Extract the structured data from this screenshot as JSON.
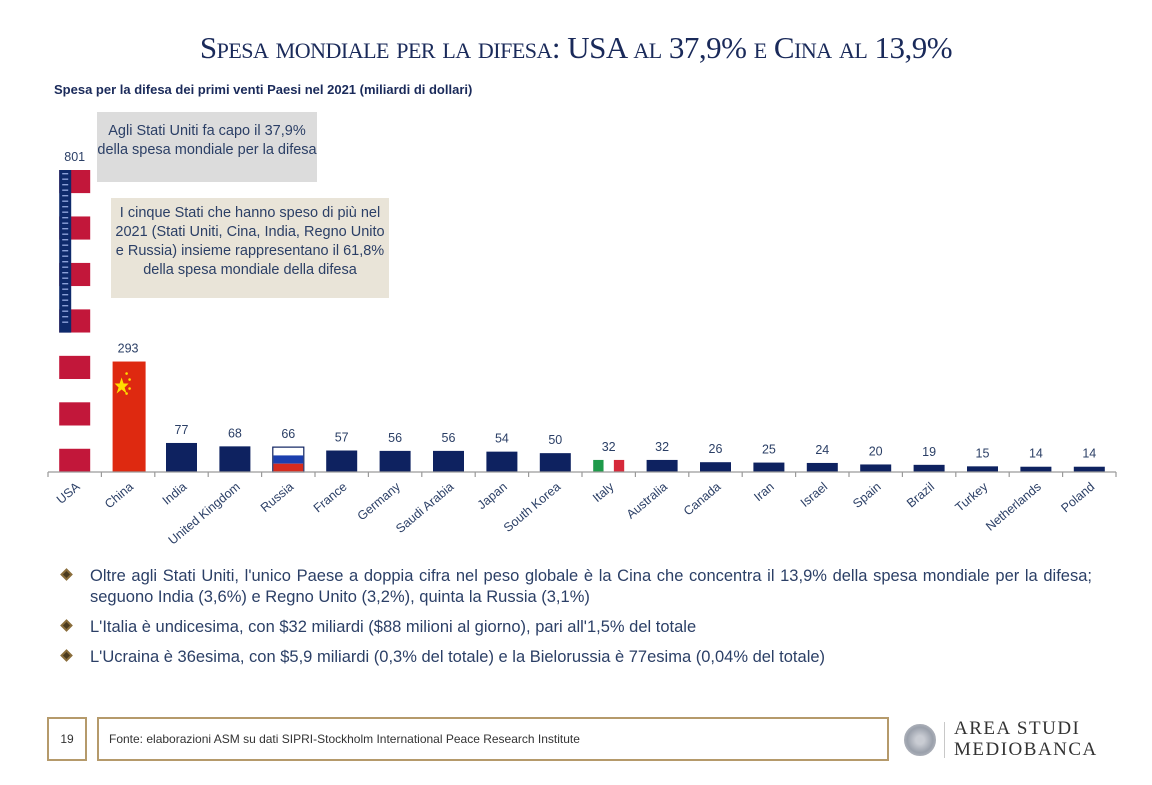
{
  "title": "Spesa mondiale per la difesa: USA al 37,9% e Cina al 13,9%",
  "subtitle": "Spesa per la difesa dei primi venti Paesi nel 2021 (miliardi di dollari)",
  "notes": {
    "usa_share": "Agli Stati Uniti fa capo il 37,9% della spesa mondiale per la difesa",
    "top_five": "I cinque Stati che hanno speso di più nel 2021 (Stati Uniti, Cina, India, Regno Unito e Russia) insieme rappresentano il 61,8% della spesa mondiale della difesa"
  },
  "chart_data": {
    "type": "bar",
    "title": "Spesa per la difesa dei primi venti Paesi nel 2021 (miliardi di dollari)",
    "xlabel": "",
    "ylabel": "",
    "ylim": [
      0,
      801
    ],
    "grid": false,
    "categories": [
      "USA",
      "China",
      "India",
      "United Kingdom",
      "Russia",
      "France",
      "Germany",
      "Saudi Arabia",
      "Japan",
      "South Korea",
      "Italy",
      "Australia",
      "Canada",
      "Iran",
      "Israel",
      "Spain",
      "Brazil",
      "Turkey",
      "Netherlands",
      "Poland"
    ],
    "values": [
      801,
      293,
      77,
      68,
      66,
      57,
      56,
      56,
      54,
      50,
      32,
      32,
      26,
      25,
      24,
      20,
      19,
      15,
      14,
      14
    ],
    "bar_styles": [
      "flag-usa",
      "flag-china",
      "plain",
      "plain",
      "flag-russia",
      "plain",
      "plain",
      "plain",
      "plain",
      "plain",
      "flag-italy",
      "plain",
      "plain",
      "plain",
      "plain",
      "plain",
      "plain",
      "plain",
      "plain",
      "plain"
    ],
    "colors": {
      "bar": "#0e2260",
      "usa_blue": "#0e2a6b",
      "usa_red": "#c2173a",
      "china_red": "#de2910",
      "china_star": "#ffde00",
      "russia_blue": "#1b3fae",
      "russia_red": "#d52b1e",
      "italy_green": "#1e9a4a",
      "italy_red": "#d6293a",
      "axis": "#9a9a9a"
    }
  },
  "bullets": [
    "Oltre agli Stati Uniti, l'unico Paese a doppia cifra nel peso globale è la Cina che concentra il 13,9% della spesa mondiale per la difesa; seguono India (3,6%) e Regno Unito (3,2%), quinta la Russia (3,1%)",
    "L'Italia è undicesima, con $32 miliardi ($88 milioni al giorno), pari all'1,5% del totale",
    "L'Ucraina è 36esima, con $5,9 miliardi (0,3% del totale) e la Bielorussia è 77esima (0,04% del totale)"
  ],
  "footer": {
    "page_number": "19",
    "source": "Fonte: elaborazioni ASM su dati SIPRI-Stockholm International Peace Research Institute",
    "logo_line1": "AREA STUDI",
    "logo_line2": "MEDIOBANCA"
  }
}
